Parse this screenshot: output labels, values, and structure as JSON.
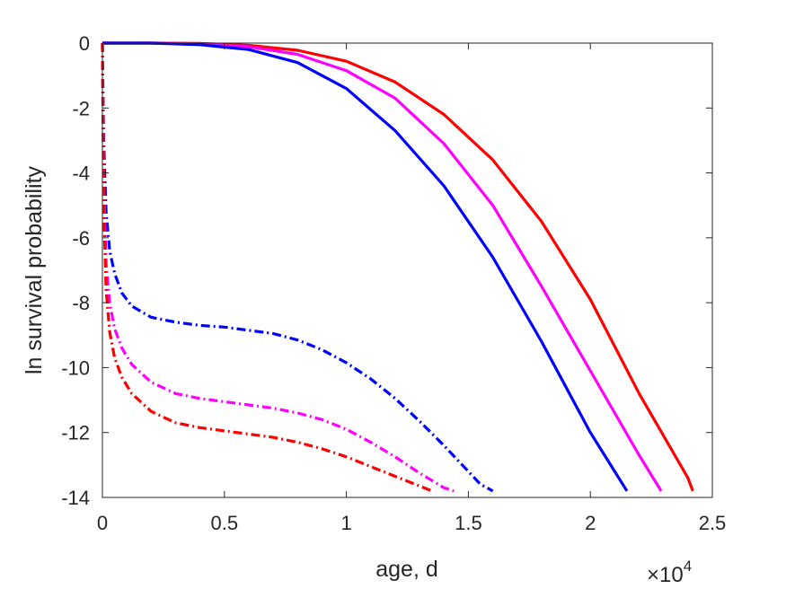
{
  "chart_data": {
    "type": "line",
    "title": "",
    "xlabel": "age, d",
    "ylabel": "ln survival probability",
    "x_multiplier_label": "×10",
    "x_multiplier_exponent": "4",
    "xlim": [
      0,
      25000
    ],
    "ylim": [
      -14,
      0
    ],
    "xticks": [
      0,
      5000,
      10000,
      15000,
      20000,
      25000
    ],
    "xtick_labels": [
      "0",
      "0.5",
      "1",
      "1.5",
      "2",
      "2.5"
    ],
    "yticks": [
      0,
      -2,
      -4,
      -6,
      -8,
      -10,
      -12,
      -14
    ],
    "ytick_labels": [
      "0",
      "-2",
      "-4",
      "-6",
      "-8",
      "-10",
      "-12",
      "-14"
    ],
    "grid": false,
    "box": true,
    "series": [
      {
        "color": "#ff0000",
        "style": "solid",
        "x": [
          0,
          2000,
          4000,
          6000,
          8000,
          10000,
          12000,
          14000,
          16000,
          18000,
          20000,
          22000,
          24000,
          24200
        ],
        "y": [
          0,
          0,
          -0.01,
          -0.07,
          -0.22,
          -0.56,
          -1.2,
          -2.2,
          -3.6,
          -5.5,
          -7.9,
          -10.8,
          -13.4,
          -13.8
        ]
      },
      {
        "color": "#ff00ff",
        "style": "solid",
        "x": [
          0,
          2000,
          4000,
          6000,
          8000,
          10000,
          12000,
          14000,
          16000,
          18000,
          20000,
          22000,
          22900
        ],
        "y": [
          0,
          0,
          -0.02,
          -0.11,
          -0.35,
          -0.85,
          -1.7,
          -3.1,
          -5.0,
          -7.5,
          -10.1,
          -12.7,
          -13.8
        ]
      },
      {
        "color": "#0000ff",
        "style": "solid",
        "x": [
          0,
          2000,
          4000,
          6000,
          8000,
          10000,
          12000,
          14000,
          16000,
          18000,
          20000,
          21500
        ],
        "y": [
          0,
          0,
          -0.05,
          -0.2,
          -0.6,
          -1.4,
          -2.7,
          -4.4,
          -6.6,
          -9.2,
          -12.0,
          -13.8
        ]
      },
      {
        "color": "#0000ff",
        "style": "dashdot",
        "x": [
          0,
          50,
          150,
          300,
          500,
          800,
          1200,
          2000,
          3000,
          4000,
          5000,
          6000,
          7000,
          8000,
          9000,
          10000,
          11000,
          12000,
          13000,
          14000,
          15000,
          15500,
          16000
        ],
        "y": [
          0,
          -3.0,
          -5.2,
          -6.4,
          -7.1,
          -7.7,
          -8.1,
          -8.45,
          -8.6,
          -8.7,
          -8.75,
          -8.85,
          -8.95,
          -9.15,
          -9.45,
          -9.85,
          -10.35,
          -10.95,
          -11.65,
          -12.4,
          -13.2,
          -13.6,
          -13.8
        ]
      },
      {
        "color": "#ff00ff",
        "style": "dashdot",
        "x": [
          0,
          50,
          150,
          300,
          500,
          800,
          1200,
          2000,
          3000,
          4000,
          5000,
          6000,
          7000,
          8000,
          9000,
          10000,
          11000,
          12000,
          13000,
          14000,
          14400
        ],
        "y": [
          0,
          -4.3,
          -6.8,
          -8.0,
          -8.8,
          -9.4,
          -9.9,
          -10.45,
          -10.8,
          -10.95,
          -11.05,
          -11.15,
          -11.25,
          -11.4,
          -11.6,
          -11.9,
          -12.3,
          -12.75,
          -13.25,
          -13.7,
          -13.8
        ]
      },
      {
        "color": "#ff0000",
        "style": "dashdot",
        "x": [
          0,
          50,
          150,
          300,
          500,
          800,
          1200,
          2000,
          3000,
          4000,
          5000,
          6000,
          7000,
          8000,
          9000,
          10000,
          11000,
          12000,
          13000,
          13500
        ],
        "y": [
          0,
          -5.0,
          -7.6,
          -8.9,
          -9.7,
          -10.3,
          -10.8,
          -11.35,
          -11.7,
          -11.85,
          -11.95,
          -12.05,
          -12.15,
          -12.3,
          -12.5,
          -12.75,
          -13.05,
          -13.35,
          -13.65,
          -13.8
        ]
      }
    ]
  }
}
